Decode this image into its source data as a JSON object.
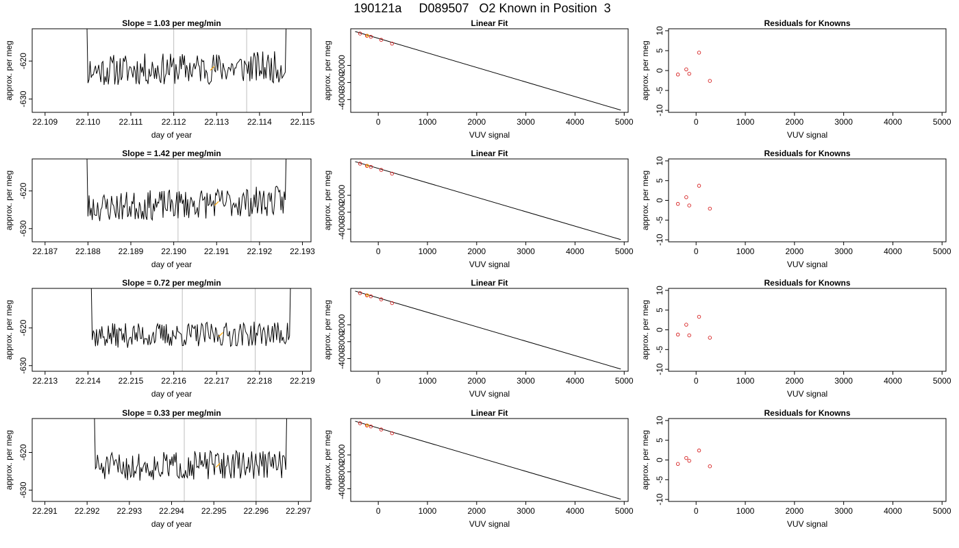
{
  "figure": {
    "title": "190121a     D089507   O2 Known in Position  3"
  },
  "chart_data": [
    {
      "type": "line",
      "panel": "time-series",
      "row": 1,
      "title": "Slope =  1.03  per meg/min",
      "xlabel": "day of year",
      "ylabel": "approx. per meg",
      "xlim": [
        22.1087,
        22.1152
      ],
      "ylim": [
        -633.5,
        -611.5
      ],
      "xticks": [
        22.109,
        22.11,
        22.111,
        22.112,
        22.113,
        22.114,
        22.115
      ],
      "yticks": [
        -620,
        -630
      ],
      "vlines": [
        22.112,
        22.1137
      ],
      "x_range": [
        22.1098,
        22.1148
      ],
      "baseline": -622.0,
      "trend": 1.0,
      "noise": 4.2,
      "seed": 11,
      "highlight_x": 22.1129,
      "grid": false
    },
    {
      "type": "scatter",
      "panel": "linear-fit",
      "row": 1,
      "title": "Linear Fit",
      "xlabel": "VUV signal",
      "ylabel": "approx. per meg",
      "xlim": [
        -560,
        5080
      ],
      "ylim": [
        -4750,
        150
      ],
      "xticks": [
        0,
        1000,
        2000,
        3000,
        4000,
        5000
      ],
      "yticks": [
        -2000,
        -3000,
        -4000
      ],
      "points": {
        "x": [
          -370,
          -230,
          -150,
          60,
          280
        ],
        "y": [
          -130,
          -260,
          -320,
          -500,
          -720
        ]
      },
      "highlight_points": {
        "x": [
          -220
        ],
        "y": [
          -250
        ]
      },
      "fit_line": {
        "x": [
          -470,
          4930
        ],
        "y": [
          -10,
          -4620
        ]
      },
      "grid": false
    },
    {
      "type": "scatter",
      "panel": "residuals",
      "row": 1,
      "title": "Residuals for Knowns",
      "xlabel": "VUV signal",
      "ylabel": "approx. per meg",
      "xlim": [
        -560,
        5080
      ],
      "ylim": [
        -10.5,
        10.5
      ],
      "xticks": [
        0,
        1000,
        2000,
        3000,
        4000,
        5000
      ],
      "yticks": [
        10,
        5,
        0,
        -5,
        -10
      ],
      "points": {
        "x": [
          -370,
          -200,
          -140,
          60,
          280
        ],
        "y": [
          -1.0,
          0.3,
          -0.8,
          4.5,
          -2.6
        ]
      },
      "grid": false
    },
    {
      "type": "line",
      "panel": "time-series",
      "row": 2,
      "title": "Slope =  1.42  per meg/min",
      "xlabel": "day of year",
      "ylabel": "approx. per meg",
      "xlim": [
        22.1867,
        22.1932
      ],
      "ylim": [
        -633.5,
        -611.5
      ],
      "xticks": [
        22.187,
        22.188,
        22.189,
        22.19,
        22.191,
        22.192,
        22.193
      ],
      "yticks": [
        -620,
        -630
      ],
      "vlines": [
        22.1901,
        22.1918
      ],
      "x_range": [
        22.1878,
        22.1928
      ],
      "baseline": -623.5,
      "trend": 2.0,
      "noise": 4.0,
      "seed": 23,
      "highlight_x": 22.191,
      "grid": false
    },
    {
      "type": "scatter",
      "panel": "linear-fit",
      "row": 2,
      "title": "Linear Fit",
      "xlabel": "VUV signal",
      "ylabel": "approx. per meg",
      "xlim": [
        -560,
        5080
      ],
      "ylim": [
        -4750,
        150
      ],
      "xticks": [
        0,
        1000,
        2000,
        3000,
        4000,
        5000
      ],
      "yticks": [
        -2000,
        -3000,
        -4000
      ],
      "points": {
        "x": [
          -370,
          -230,
          -150,
          60,
          280
        ],
        "y": [
          -130,
          -260,
          -320,
          -500,
          -720
        ]
      },
      "highlight_points": {
        "x": [
          -220
        ],
        "y": [
          -250
        ]
      },
      "fit_line": {
        "x": [
          -470,
          4930
        ],
        "y": [
          -10,
          -4620
        ]
      },
      "grid": false
    },
    {
      "type": "scatter",
      "panel": "residuals",
      "row": 2,
      "title": "Residuals for Knowns",
      "xlabel": "VUV signal",
      "ylabel": "approx. per meg",
      "xlim": [
        -560,
        5080
      ],
      "ylim": [
        -10.5,
        10.5
      ],
      "xticks": [
        0,
        1000,
        2000,
        3000,
        4000,
        5000
      ],
      "yticks": [
        10,
        5,
        0,
        -5,
        -10
      ],
      "points": {
        "x": [
          -370,
          -200,
          -140,
          60,
          280
        ],
        "y": [
          -0.9,
          0.8,
          -1.3,
          3.7,
          -2.1
        ]
      },
      "grid": false
    },
    {
      "type": "line",
      "panel": "time-series",
      "row": 3,
      "title": "Slope =  0.72  per meg/min",
      "xlabel": "day of year",
      "ylabel": "approx. per meg",
      "xlim": [
        22.2127,
        22.2192
      ],
      "ylim": [
        -631.5,
        -609.5
      ],
      "xticks": [
        22.213,
        22.214,
        22.215,
        22.216,
        22.217,
        22.218,
        22.219
      ],
      "yticks": [
        -620,
        -630
      ],
      "vlines": [
        22.2162,
        22.2179
      ],
      "x_range": [
        22.2139,
        22.2189
      ],
      "baseline": -621.8,
      "trend": 0.6,
      "noise": 3.3,
      "seed": 37,
      "highlight_x": 22.2171,
      "grid": false
    },
    {
      "type": "scatter",
      "panel": "linear-fit",
      "row": 3,
      "title": "Linear Fit",
      "xlabel": "VUV signal",
      "ylabel": "approx. per meg",
      "xlim": [
        -560,
        5080
      ],
      "ylim": [
        -4750,
        150
      ],
      "xticks": [
        0,
        1000,
        2000,
        3000,
        4000,
        5000
      ],
      "yticks": [
        -2000,
        -3000,
        -4000
      ],
      "points": {
        "x": [
          -370,
          -230,
          -150,
          60,
          280
        ],
        "y": [
          -130,
          -260,
          -320,
          -500,
          -720
        ]
      },
      "highlight_points": {
        "x": [
          -220
        ],
        "y": [
          -250
        ]
      },
      "fit_line": {
        "x": [
          -470,
          4930
        ],
        "y": [
          -10,
          -4620
        ]
      },
      "grid": false
    },
    {
      "type": "scatter",
      "panel": "residuals",
      "row": 3,
      "title": "Residuals for Knowns",
      "xlabel": "VUV signal",
      "ylabel": "approx. per meg",
      "xlim": [
        -560,
        5080
      ],
      "ylim": [
        -10.5,
        10.5
      ],
      "xticks": [
        0,
        1000,
        2000,
        3000,
        4000,
        5000
      ],
      "yticks": [
        10,
        5,
        0,
        -5,
        -10
      ],
      "points": {
        "x": [
          -370,
          -200,
          -140,
          60,
          280
        ],
        "y": [
          -1.2,
          1.3,
          -1.4,
          3.3,
          -2.0
        ]
      },
      "grid": false
    },
    {
      "type": "line",
      "panel": "time-series",
      "row": 4,
      "title": "Slope =  0.33  per meg/min",
      "xlabel": "day of year",
      "ylabel": "approx. per meg",
      "xlim": [
        22.2907,
        22.2973
      ],
      "ylim": [
        -633.0,
        -611.0
      ],
      "xticks": [
        22.291,
        22.292,
        22.293,
        22.294,
        22.295,
        22.296,
        22.297
      ],
      "yticks": [
        -620,
        -630
      ],
      "vlines": [
        22.2943,
        22.296
      ],
      "x_range": [
        22.292,
        22.2969
      ],
      "baseline": -623.5,
      "trend": 1.0,
      "noise": 3.8,
      "seed": 51,
      "highlight_x": 22.2951,
      "grid": false
    },
    {
      "type": "scatter",
      "panel": "linear-fit",
      "row": 4,
      "title": "Linear Fit",
      "xlabel": "VUV signal",
      "ylabel": "approx. per meg",
      "xlim": [
        -560,
        5080
      ],
      "ylim": [
        -4750,
        150
      ],
      "xticks": [
        0,
        1000,
        2000,
        3000,
        4000,
        5000
      ],
      "yticks": [
        -2000,
        -3000,
        -4000
      ],
      "points": {
        "x": [
          -370,
          -230,
          -150,
          60,
          280
        ],
        "y": [
          -130,
          -260,
          -320,
          -500,
          -720
        ]
      },
      "highlight_points": {
        "x": [
          -220
        ],
        "y": [
          -250
        ]
      },
      "fit_line": {
        "x": [
          -470,
          4930
        ],
        "y": [
          -10,
          -4620
        ]
      },
      "grid": false
    },
    {
      "type": "scatter",
      "panel": "residuals",
      "row": 4,
      "title": "Residuals for Knowns",
      "xlabel": "VUV signal",
      "ylabel": "approx. per meg",
      "xlim": [
        -560,
        5080
      ],
      "ylim": [
        -10.5,
        10.5
      ],
      "xticks": [
        0,
        1000,
        2000,
        3000,
        4000,
        5000
      ],
      "yticks": [
        10,
        5,
        0,
        -5,
        -10
      ],
      "points": {
        "x": [
          -370,
          -200,
          -140,
          60,
          280
        ],
        "y": [
          -1.0,
          0.5,
          -0.2,
          2.4,
          -1.6
        ]
      },
      "grid": false
    }
  ],
  "colors": {
    "axis": "#000000",
    "series_line": "#000000",
    "vline": "#bebebe",
    "marker_point": "#d62020",
    "highlight": "#ffa500"
  }
}
